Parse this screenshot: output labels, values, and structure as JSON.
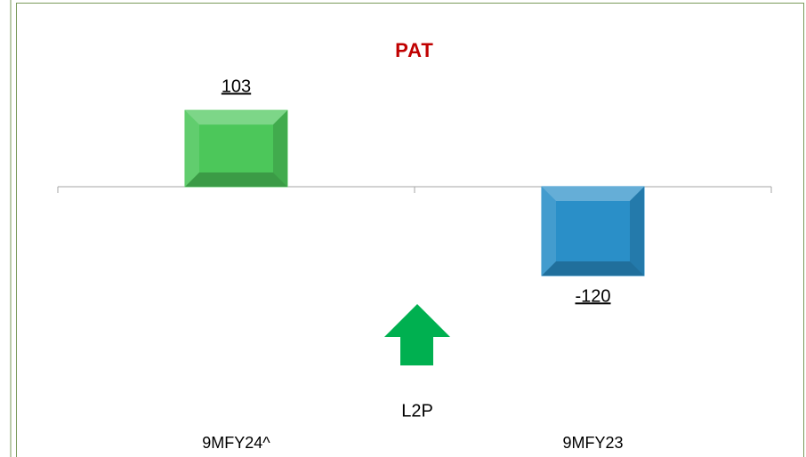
{
  "chart_data": {
    "type": "bar",
    "title": "PAT",
    "categories": [
      "9MFY24^",
      "9MFY23"
    ],
    "values": [
      103,
      -120
    ],
    "colors": [
      "#4cc75a",
      "#2a8fc8"
    ],
    "annotation": "L2P"
  }
}
